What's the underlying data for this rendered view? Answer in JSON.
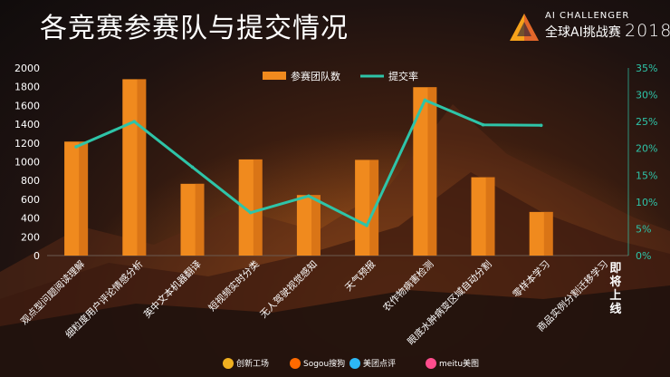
{
  "slide": {
    "title": "各竞赛参赛队与提交情况"
  },
  "logo": {
    "line1": "AI CHALLENGER",
    "line2": "全球AI挑战赛",
    "year": "2018"
  },
  "colors": {
    "bar": "#f08a1e",
    "bar_dark": "#c96410",
    "line": "#2ec4a8",
    "axis_right": "#2ec4a8",
    "text": "#ffffff"
  },
  "chart_data": {
    "type": "bar",
    "categories": [
      "观点型问题阅读理解",
      "细粒度用户评论情感分析",
      "英中文本机器翻译",
      "短视频实时分类",
      "无人驾驶视觉感知",
      "天气预报",
      "农作物病害检测",
      "眼底水肿病变区域自动分割",
      "零样本学习",
      "商品实例分割迁移学习"
    ],
    "category_marks": [
      "即将上线"
    ],
    "series": [
      {
        "name": "参赛团队数",
        "type": "bar",
        "axis": "left",
        "values": [
          1215,
          1880,
          765,
          1025,
          645,
          1020,
          1795,
          835,
          465,
          null
        ]
      },
      {
        "name": "提交率",
        "type": "line",
        "axis": "right",
        "values": [
          0.203,
          0.25,
          0.165,
          0.08,
          0.111,
          0.056,
          0.29,
          0.244,
          0.243,
          null
        ]
      }
    ],
    "ylim_left": [
      0,
      2000
    ],
    "yticks_left": [
      0,
      200,
      400,
      600,
      800,
      1000,
      1200,
      1400,
      1600,
      1800,
      2000
    ],
    "ylim_right": [
      0,
      0.35
    ],
    "yticks_right": [
      "0%",
      "5%",
      "10%",
      "15%",
      "20%",
      "25%",
      "30%",
      "35%"
    ],
    "legend_position": "top-center",
    "grid": false
  },
  "sponsors": [
    {
      "label": "创新工场",
      "icon": "chuangxin-gear-icon",
      "color": "#f0b020"
    },
    {
      "label": "Sogou搜狗",
      "icon": "sogou-logo-icon",
      "color": "#ff6a00"
    },
    {
      "label": "美团点评",
      "icon": "meituan-dianping-icon",
      "color": "#2db7f5"
    },
    {
      "label": "meitu美图",
      "icon": "meitu-logo-icon",
      "color": "#ff4d8d"
    }
  ]
}
